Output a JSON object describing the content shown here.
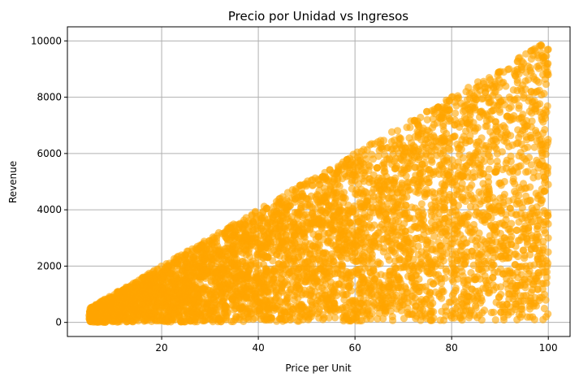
{
  "chart_data": {
    "type": "scatter",
    "title": "Precio por Unidad vs Ingresos",
    "xlabel": "Price per Unit",
    "ylabel": "Revenue",
    "xlim": [
      0.5,
      104.5
    ],
    "ylim": [
      -500,
      10500
    ],
    "xticks": [
      20,
      40,
      60,
      80,
      100
    ],
    "yticks": [
      0,
      2000,
      4000,
      6000,
      8000,
      10000
    ],
    "grid": true,
    "marker_color": "#FFA500",
    "marker_alpha": 0.6,
    "approx_point_count": 5000,
    "distribution": "Revenue = Price per Unit × Quantity; Price per Unit ≈ uniform 5–100, Quantity ≈ uniform 1–100; points fill the triangle between y ≈ x and y ≈ 100·x",
    "series": [
      {
        "name": "",
        "points": [
          [
            5.2,
            480
          ],
          [
            5.8,
            20
          ],
          [
            6.5,
            610
          ],
          [
            7.0,
            300
          ],
          [
            8.1,
            790
          ],
          [
            9.0,
            120
          ],
          [
            10.2,
            980
          ],
          [
            11.5,
            560
          ],
          [
            12.8,
            1240
          ],
          [
            14.0,
            210
          ],
          [
            15.3,
            1500
          ],
          [
            16.9,
            880
          ],
          [
            18.2,
            1790
          ],
          [
            19.5,
            400
          ],
          [
            21.0,
            2080
          ],
          [
            22.7,
            1150
          ],
          [
            24.1,
            2390
          ],
          [
            25.8,
            600
          ],
          [
            27.4,
            2700
          ],
          [
            29.0,
            1640
          ],
          [
            30.6,
            3030
          ],
          [
            32.3,
            900
          ],
          [
            34.0,
            3370
          ],
          [
            35.7,
            2100
          ],
          [
            37.5,
            3720
          ],
          [
            39.2,
            1300
          ],
          [
            40.9,
            3900
          ],
          [
            42.6,
            2800
          ],
          [
            44.3,
            4380
          ],
          [
            46.0,
            700
          ],
          [
            47.8,
            4740
          ],
          [
            49.5,
            3200
          ],
          [
            51.2,
            5060
          ],
          [
            53.0,
            1900
          ],
          [
            54.8,
            5420
          ],
          [
            56.5,
            3900
          ],
          [
            58.3,
            5780
          ],
          [
            60.0,
            2500
          ],
          [
            61.8,
            6140
          ],
          [
            63.5,
            4600
          ],
          [
            65.3,
            6460
          ],
          [
            67.0,
            1200
          ],
          [
            68.8,
            6810
          ],
          [
            70.6,
            5200
          ],
          [
            72.3,
            7170
          ],
          [
            74.1,
            3300
          ],
          [
            75.9,
            7520
          ],
          [
            77.7,
            6000
          ],
          [
            79.5,
            7880
          ],
          [
            81.2,
            2200
          ],
          [
            83.0,
            8200
          ],
          [
            84.8,
            6800
          ],
          [
            86.6,
            8560
          ],
          [
            88.4,
            4100
          ],
          [
            90.1,
            8910
          ],
          [
            91.9,
            7600
          ],
          [
            93.7,
            9280
          ],
          [
            95.5,
            3000
          ],
          [
            97.3,
            9640
          ],
          [
            98.6,
            9820
          ],
          [
            99.8,
            8800
          ],
          [
            99.9,
            5500
          ],
          [
            99.7,
            1600
          ]
        ]
      }
    ]
  }
}
